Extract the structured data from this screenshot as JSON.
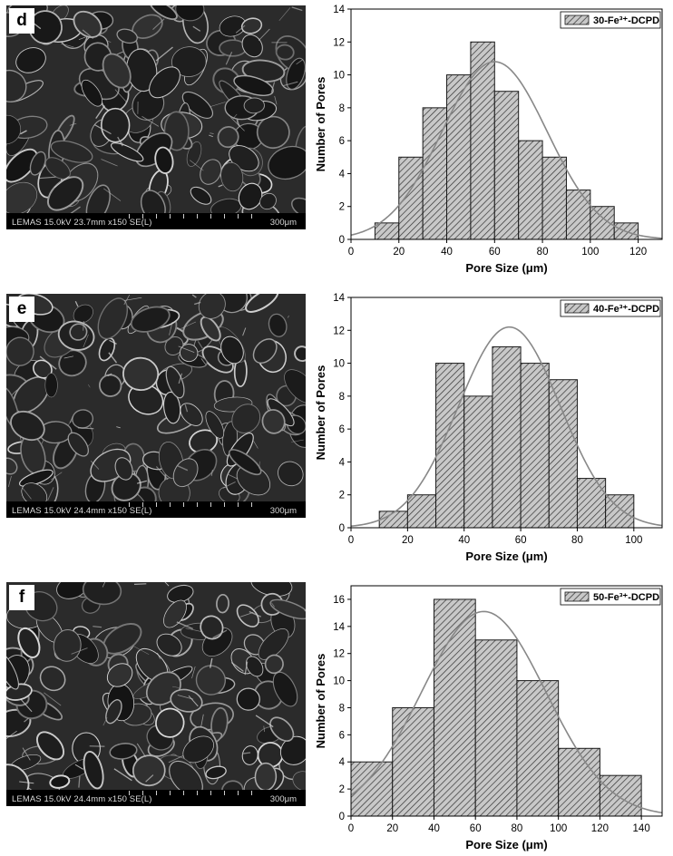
{
  "panels": [
    {
      "letter": "d",
      "sem_info": "LEMAS 15.0kV 23.7mm x150 SE(L)",
      "sem_scale": "300μm"
    },
    {
      "letter": "e",
      "sem_info": "LEMAS 15.0kV 24.4mm x150 SE(L)",
      "sem_scale": "300μm"
    },
    {
      "letter": "f",
      "sem_info": "LEMAS 15.0kV 24.4mm x150 SE(L)",
      "sem_scale": "300μm"
    }
  ],
  "chart_data": [
    {
      "type": "bar",
      "legend": "30-Fe³⁺-DCPD",
      "legend_position": "top-right",
      "xlabel": "Pore Size (μm)",
      "ylabel": "Number of Pores",
      "xlim": [
        0,
        130
      ],
      "ylim": [
        0,
        14
      ],
      "xticks": [
        0,
        20,
        40,
        60,
        80,
        100,
        120
      ],
      "yticks": [
        0,
        2,
        4,
        6,
        8,
        10,
        12,
        14
      ],
      "bin_edges": [
        10,
        20,
        30,
        40,
        50,
        60,
        70,
        80,
        90,
        100,
        110,
        120
      ],
      "values": [
        1,
        5,
        8,
        10,
        12,
        9,
        6,
        5,
        3,
        2,
        1
      ],
      "fit_curve": {
        "type": "normal",
        "mean": 60,
        "peak": 10.8,
        "sigma": 22
      },
      "grid": false,
      "bar_fill": "#c8c8c8",
      "fit_color": "#888888"
    },
    {
      "type": "bar",
      "legend": "40-Fe³⁺-DCPD",
      "legend_position": "top-right",
      "xlabel": "Pore Size (μm)",
      "ylabel": "Number of Pores",
      "xlim": [
        0,
        110
      ],
      "ylim": [
        0,
        14
      ],
      "xticks": [
        0,
        20,
        40,
        60,
        80,
        100
      ],
      "yticks": [
        0,
        2,
        4,
        6,
        8,
        10,
        12,
        14
      ],
      "bin_edges": [
        10,
        20,
        30,
        40,
        50,
        60,
        70,
        80,
        90,
        100
      ],
      "values": [
        1,
        2,
        10,
        8,
        11,
        10,
        9,
        3,
        2
      ],
      "fit_curve": {
        "type": "normal",
        "mean": 56,
        "peak": 12.2,
        "sigma": 18
      },
      "grid": false,
      "bar_fill": "#c8c8c8",
      "fit_color": "#888888"
    },
    {
      "type": "bar",
      "legend": "50-Fe³⁺-DCPD",
      "legend_position": "top-right",
      "xlabel": "Pore Size (μm)",
      "ylabel": "Number of Pores",
      "xlim": [
        0,
        150
      ],
      "ylim": [
        0,
        17
      ],
      "xticks": [
        0,
        20,
        40,
        60,
        80,
        100,
        120,
        140
      ],
      "yticks": [
        0,
        2,
        4,
        6,
        8,
        10,
        12,
        14,
        16
      ],
      "bin_edges": [
        0,
        20,
        40,
        60,
        80,
        100,
        120,
        140
      ],
      "values": [
        4,
        8,
        16,
        13,
        10,
        5,
        3
      ],
      "fit_curve": {
        "type": "normal",
        "mean": 64,
        "peak": 15.1,
        "sigma": 30
      },
      "grid": false,
      "bar_fill": "#c8c8c8",
      "fit_color": "#888888"
    }
  ]
}
